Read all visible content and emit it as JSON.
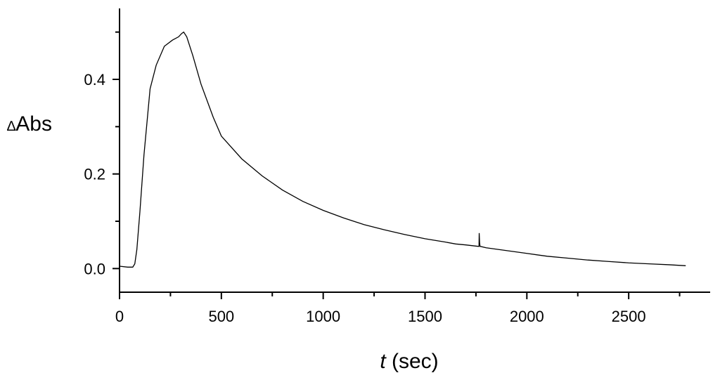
{
  "chart_data": {
    "type": "line",
    "title": "",
    "xlabel_italic": "t",
    "xlabel_rest": " (sec)",
    "ylabel_prefix": "∆",
    "ylabel_main": "Abs",
    "xlim": [
      0,
      2900
    ],
    "ylim": [
      -0.05,
      0.55
    ],
    "x_ticks": [
      0,
      500,
      1000,
      1500,
      2000,
      2500
    ],
    "x_tick_labels": [
      "0",
      "500",
      "1000",
      "1500",
      "2000",
      "2500"
    ],
    "x_minor_ticks": [
      250,
      750,
      1250,
      1750,
      2250,
      2750
    ],
    "y_ticks": [
      0.0,
      0.2,
      0.4
    ],
    "y_tick_labels": [
      "0.0",
      "0.2",
      "0.4"
    ],
    "y_minor_ticks": [
      0.1,
      0.3,
      0.5
    ],
    "grid": false,
    "series": [
      {
        "color": "#000000",
        "x": [
          0,
          40,
          65,
          75,
          85,
          100,
          120,
          150,
          180,
          220,
          260,
          290,
          305,
          315,
          330,
          360,
          400,
          460,
          500,
          600,
          700,
          800,
          900,
          1000,
          1100,
          1200,
          1300,
          1400,
          1500,
          1600,
          1650,
          1700,
          1760,
          1765,
          1766,
          1768,
          1770,
          1800,
          1900,
          2000,
          2100,
          2200,
          2300,
          2400,
          2500,
          2600,
          2700,
          2780
        ],
        "y": [
          0.005,
          0.003,
          0.003,
          0.01,
          0.04,
          0.12,
          0.24,
          0.38,
          0.43,
          0.47,
          0.483,
          0.49,
          0.497,
          0.5,
          0.49,
          0.45,
          0.39,
          0.32,
          0.28,
          0.232,
          0.196,
          0.166,
          0.142,
          0.123,
          0.107,
          0.093,
          0.082,
          0.072,
          0.063,
          0.056,
          0.052,
          0.05,
          0.047,
          0.047,
          0.075,
          0.055,
          0.047,
          0.044,
          0.038,
          0.032,
          0.026,
          0.022,
          0.018,
          0.015,
          0.012,
          0.01,
          0.008,
          0.006
        ]
      }
    ]
  }
}
